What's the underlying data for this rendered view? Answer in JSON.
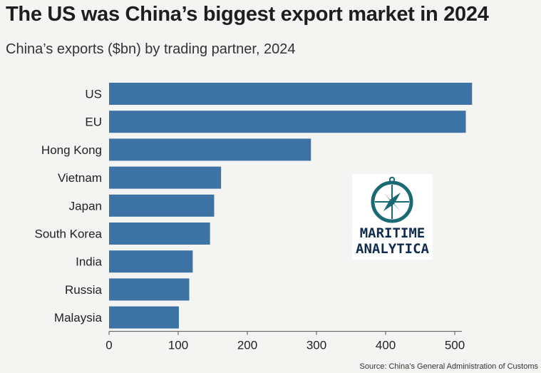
{
  "header": {
    "title": "The US was China’s biggest export market in 2024",
    "subtitle": "China’s exports ($bn) by trading partner, 2024"
  },
  "chart_data": {
    "type": "bar",
    "orientation": "horizontal",
    "title": "The US was China’s biggest export market in 2024",
    "subtitle": "China’s exports ($bn) by trading partner, 2024",
    "categories": [
      "US",
      "EU",
      "Hong Kong",
      "Vietnam",
      "Japan",
      "South Korea",
      "India",
      "Russia",
      "Malaysia"
    ],
    "values": [
      525,
      516,
      292,
      162,
      152,
      146,
      121,
      116,
      101
    ],
    "xlabel": "",
    "ylabel": "",
    "xlim": [
      0,
      500
    ],
    "xticks": [
      0,
      100,
      200,
      300,
      400,
      500
    ],
    "bar_color": "#3d72a4",
    "grid": false,
    "legend": "none"
  },
  "logo": {
    "line1": "MARITIME",
    "line2": "ANALYTICA",
    "icon": "compass-icon",
    "color": "#1a6a73"
  },
  "footer": {
    "source": "Source: China’s General Administration of Customs"
  }
}
